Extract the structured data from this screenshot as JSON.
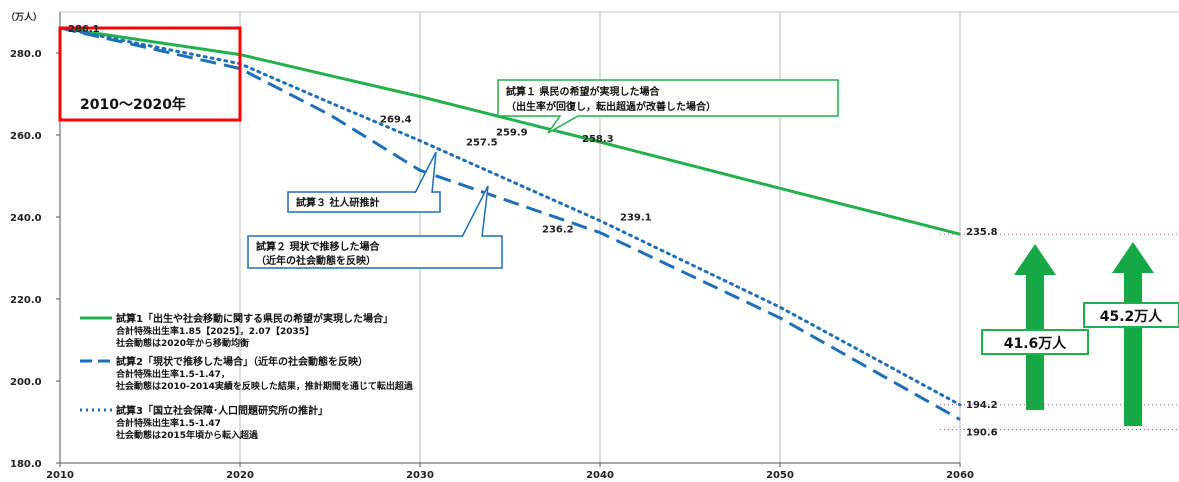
{
  "chart_data": {
    "type": "line",
    "y_unit": "（万人）",
    "x": [
      2010,
      2020,
      2030,
      2040,
      2050,
      2060
    ],
    "x_ticks": [
      "2010",
      "2020",
      "2030",
      "2040",
      "2050",
      "2060"
    ],
    "y_ticks": [
      "180.0",
      "200.0",
      "220.0",
      "240.0",
      "260.0",
      "280.0"
    ],
    "ylim": [
      180,
      290
    ],
    "xlim": [
      2010,
      2060
    ],
    "grid": "vertical",
    "series": [
      {
        "key": "s1",
        "color": "#22b04b",
        "dash": "solid",
        "points": [
          [
            2010,
            286.1
          ],
          [
            2020,
            279.6
          ],
          [
            2030,
            269.4
          ],
          [
            2040,
            258.3
          ],
          [
            2050,
            247.0
          ],
          [
            2060,
            235.8
          ]
        ]
      },
      {
        "key": "s2",
        "color": "#1f6fb8",
        "dash": "dashed",
        "points": [
          [
            2010,
            286.1
          ],
          [
            2020,
            276.2
          ],
          [
            2025,
            264.9
          ],
          [
            2030,
            251.4
          ],
          [
            2040,
            236.2
          ],
          [
            2050,
            215.4
          ],
          [
            2060,
            190.6
          ]
        ]
      },
      {
        "key": "s3",
        "color": "#1f6fb8",
        "dash": "dotted",
        "points": [
          [
            2010,
            286.1
          ],
          [
            2020,
            277.4
          ],
          [
            2025,
            267.9
          ],
          [
            2030,
            258.6
          ],
          [
            2040,
            239.1
          ],
          [
            2050,
            218.0
          ],
          [
            2060,
            194.2
          ]
        ]
      }
    ],
    "data_labels": [
      {
        "text": "286.1",
        "x": 2010,
        "y": 286.1
      },
      {
        "text": "269.4",
        "x": 2020,
        "y": 269.4
      },
      {
        "text": "259.9",
        "x": 2027,
        "y": 259.9
      },
      {
        "text": "257.5",
        "x": 2025,
        "y": 257.5
      },
      {
        "text": "258.3",
        "x": 2040,
        "y": 258.3
      },
      {
        "text": "239.1",
        "x": 2040,
        "y": 239.1
      },
      {
        "text": "236.2",
        "x": 2040,
        "y": 236.2
      },
      {
        "text": "235.8",
        "x": 2060,
        "y": 235.8
      },
      {
        "text": "194.2",
        "x": 2060,
        "y": 194.2
      },
      {
        "text": "190.6",
        "x": 2060,
        "y": 190.6
      }
    ],
    "highlight_box": "2010〜2020年",
    "callouts": {
      "s1_line1": "試算１ 県民の希望が実現した場合",
      "s1_line2": "（出生率が回復し，転出超過が改善した場合）",
      "s3": "試算３ 社人研推計",
      "s2_line1": "試算２ 現状で推移した場合",
      "s2_line2": "（近年の社会動態を反映）"
    },
    "legend": [
      {
        "title": "試算1「出生や社会移動に関する県民の希望が実現した場合」",
        "detail1": "合計特殊出生率1.85【2025】，2.07【2035】",
        "detail2": "社会動態は2020年から移動均衡"
      },
      {
        "title": "試算2「現状で推移した場合」（近年の社会動態を反映）",
        "detail1": "合計特殊出生率1.5-1.47，",
        "detail2": "社会動態は2010-2014実績を反映した結果，推計期間を通じて転出超過"
      },
      {
        "title": "試算3「国立社会保障･人口問題研究所の推計」",
        "detail1": "合計特殊出生率1.5-1.47",
        "detail2": "社会動態は2015年頃から転入超過"
      }
    ],
    "difference_labels": [
      "41.6万人",
      "45.2万人"
    ],
    "colors": {
      "highlight": "#ff0000",
      "arrow": "#15a845",
      "guide": "#e040c0",
      "callout_green": "#22b04b",
      "callout_blue": "#1f6fb8"
    }
  }
}
